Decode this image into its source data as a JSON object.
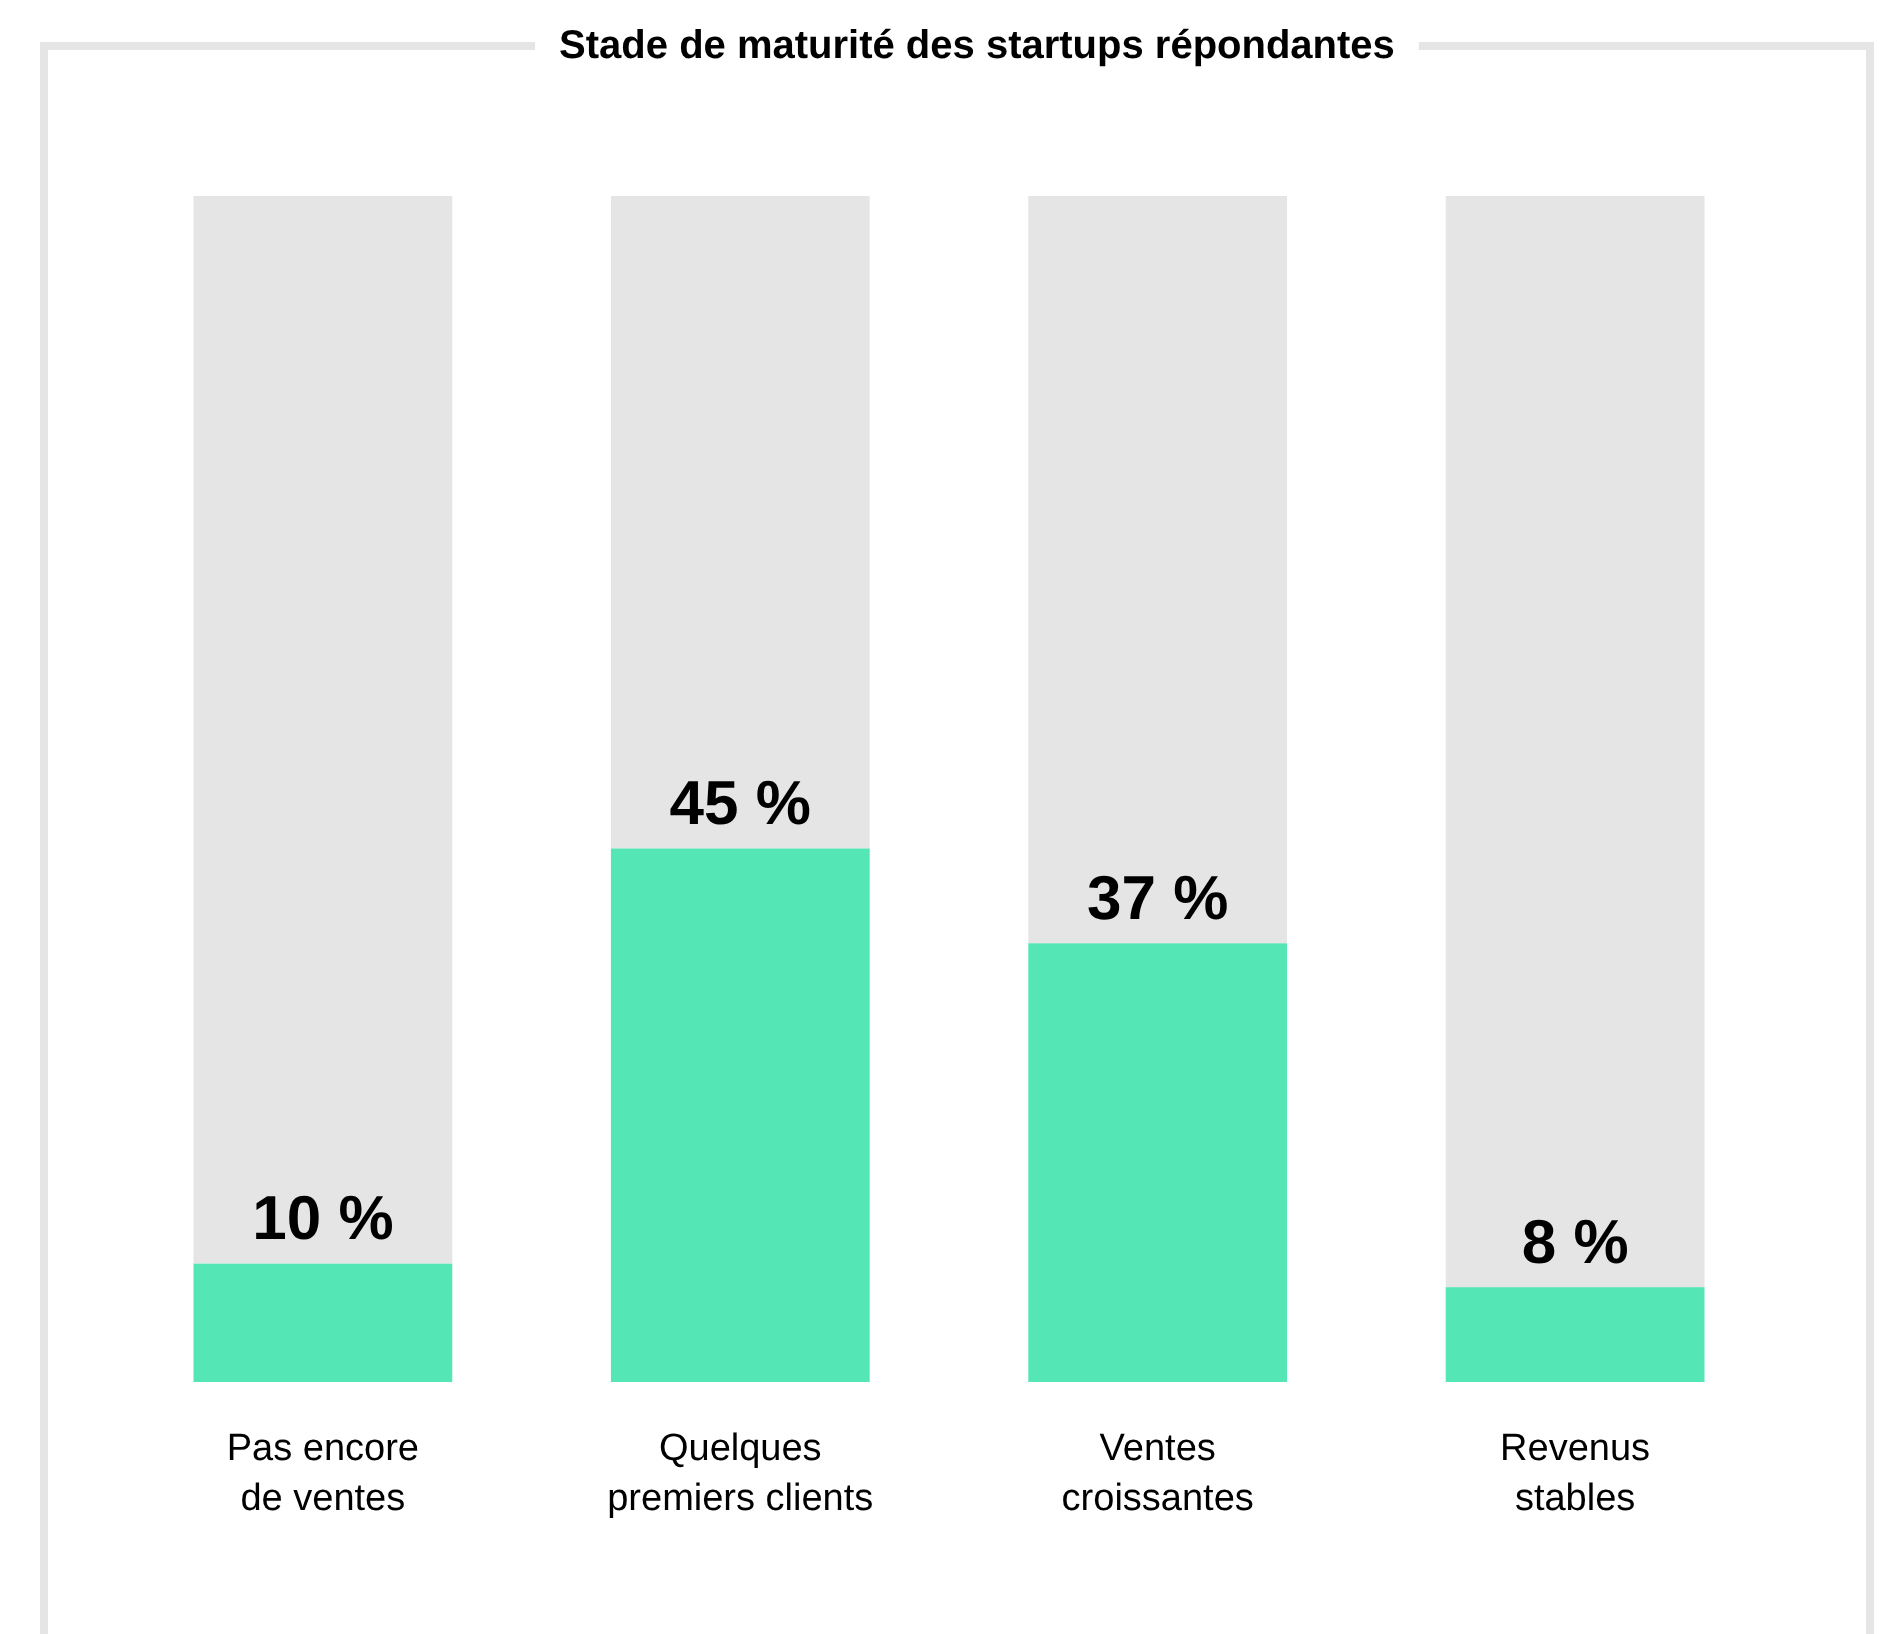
{
  "chart_data": {
    "type": "bar",
    "title": "Stade de maturité des startups répondantes",
    "categories": [
      "Pas encore de ventes",
      "Quelques premiers clients",
      "Ventes croissantes",
      "Revenus stables"
    ],
    "stacked": true,
    "ylim": [
      0,
      100
    ],
    "series": [
      {
        "color": "#55e6b6",
        "values": [
          10,
          45,
          37,
          8
        ],
        "value_labels": [
          "10 %",
          "45 %",
          "37 %",
          "8 %"
        ]
      },
      {
        "color": "#e5e5e5",
        "values": [
          90,
          55,
          63,
          92
        ]
      }
    ]
  }
}
